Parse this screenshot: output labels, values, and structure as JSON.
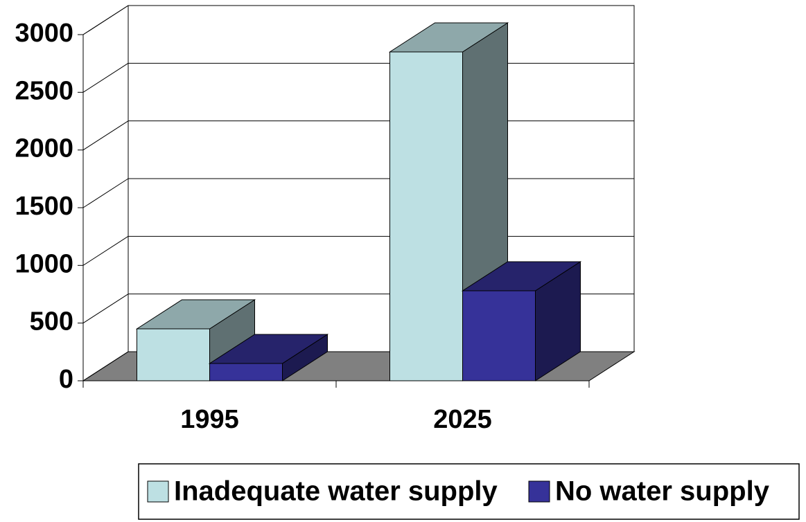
{
  "chart_data": {
    "type": "bar3d",
    "categories": [
      "1995",
      "2025"
    ],
    "series": [
      {
        "name": "Inadequate water supply",
        "color": "#bde0e3",
        "values": [
          450,
          2850
        ]
      },
      {
        "name": "No water supply",
        "color": "#363299",
        "values": [
          150,
          780
        ]
      }
    ],
    "ylim": [
      0,
      3000
    ],
    "yticks": [
      0,
      500,
      1000,
      1500,
      2000,
      2500,
      3000
    ],
    "grid": true
  }
}
